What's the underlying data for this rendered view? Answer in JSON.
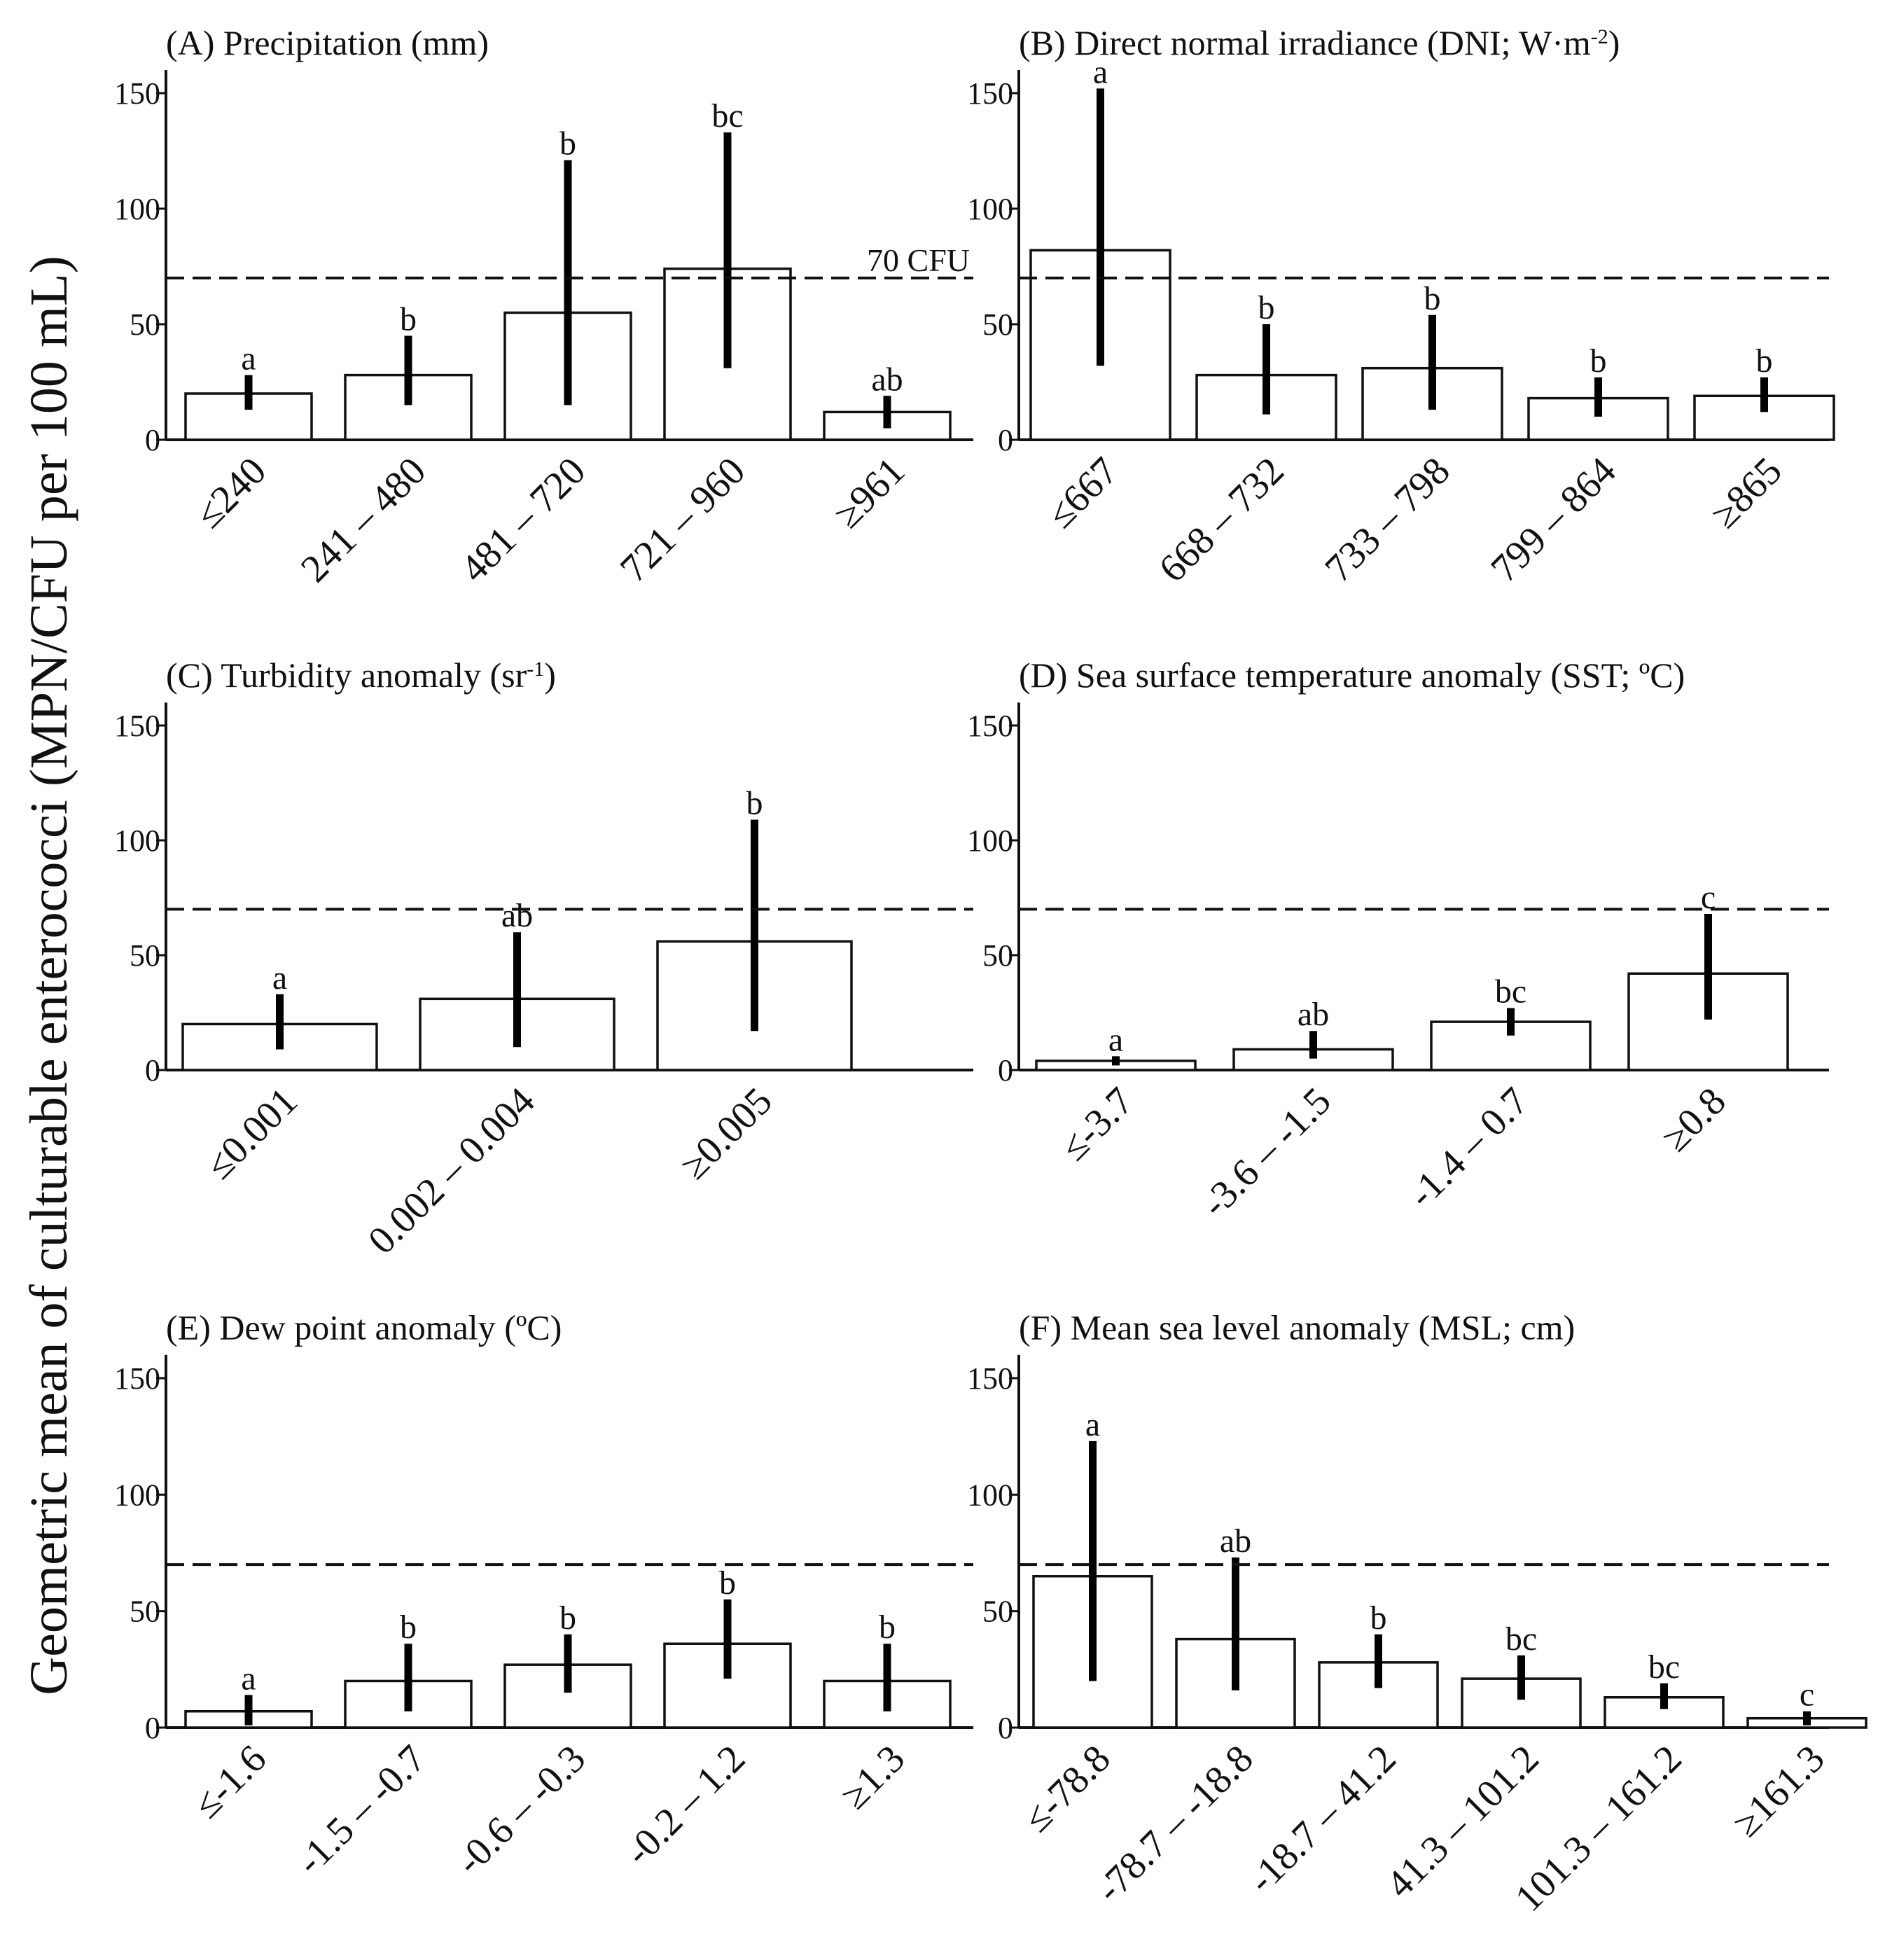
{
  "y_axis_title": "Geometric mean of culturable enterococci (MPN/CFU per 100 mL)",
  "reference_label": "70 CFU",
  "colors": {
    "ink": "#111111",
    "bar_fill": "#ffffff",
    "error_bar": "#000000"
  },
  "chart_data": [
    {
      "type": "bar",
      "id": "A",
      "title": "(A) Precipitation (mm)",
      "ylim": [
        0,
        160
      ],
      "yticks": [
        0,
        50,
        100,
        150
      ],
      "reference_line": 70,
      "categories": [
        "≤240",
        "241 – 480",
        "481 – 720",
        "721 – 960",
        "≥961"
      ],
      "values": [
        20,
        28,
        55,
        74,
        12
      ],
      "error_low": [
        13,
        15,
        15,
        31,
        5
      ],
      "error_high": [
        28,
        45,
        121,
        133,
        19
      ],
      "significance": [
        "a",
        "b",
        "b",
        "bc",
        "ab"
      ]
    },
    {
      "type": "bar",
      "id": "B",
      "title": "(B) Direct normal irradiance (DNI; W·m",
      "title_sup": "-2",
      "title_end": ")",
      "ylim": [
        0,
        160
      ],
      "yticks": [
        0,
        50,
        100,
        150
      ],
      "reference_line": 70,
      "categories": [
        "≤667",
        "668 – 732",
        "733 – 798",
        "799 – 864",
        "≥865"
      ],
      "values": [
        82,
        28,
        31,
        18,
        19
      ],
      "error_low": [
        32,
        11,
        13,
        10,
        12
      ],
      "error_high": [
        152,
        50,
        54,
        27,
        27
      ],
      "significance": [
        "a",
        "b",
        "b",
        "b",
        "b"
      ]
    },
    {
      "type": "bar",
      "id": "C",
      "title": "(C) Turbidity anomaly (sr",
      "title_sup": "-1",
      "title_end": ")",
      "ylim": [
        0,
        160
      ],
      "yticks": [
        0,
        50,
        100,
        150
      ],
      "reference_line": 70,
      "categories": [
        "≤0.001",
        "0.002 – 0.004",
        "≥0.005"
      ],
      "values": [
        20,
        31,
        56
      ],
      "error_low": [
        9,
        10,
        17
      ],
      "error_high": [
        33,
        60,
        109
      ],
      "significance": [
        "a",
        "ab",
        "b"
      ]
    },
    {
      "type": "bar",
      "id": "D",
      "title": "(D) Sea surface temperature anomaly (SST; ºC)",
      "ylim": [
        0,
        160
      ],
      "yticks": [
        0,
        50,
        100,
        150
      ],
      "reference_line": 70,
      "categories": [
        "≤-3.7",
        "-3.6 – -1.5",
        "-1.4 – 0.7",
        "≥0.8"
      ],
      "values": [
        4,
        9,
        21,
        42
      ],
      "error_low": [
        2,
        5,
        15,
        22
      ],
      "error_high": [
        6,
        17,
        27,
        68
      ],
      "significance": [
        "a",
        "ab",
        "bc",
        "c"
      ]
    },
    {
      "type": "bar",
      "id": "E",
      "title": "(E) Dew point anomaly (ºC)",
      "ylim": [
        0,
        160
      ],
      "yticks": [
        0,
        50,
        100,
        150
      ],
      "reference_line": 70,
      "categories": [
        "≤-1.6",
        "-1.5 – -0.7",
        "-0.6 – -0.3",
        "-0.2 – 1.2",
        "≥1.3"
      ],
      "values": [
        7,
        20,
        27,
        36,
        20
      ],
      "error_low": [
        1,
        7,
        15,
        21,
        7
      ],
      "error_high": [
        14,
        36,
        40,
        55,
        36
      ],
      "significance": [
        "a",
        "b",
        "b",
        "b",
        "b"
      ]
    },
    {
      "type": "bar",
      "id": "F",
      "title": "(F) Mean sea level anomaly (MSL; cm)",
      "ylim": [
        0,
        160
      ],
      "yticks": [
        0,
        50,
        100,
        150
      ],
      "reference_line": 70,
      "categories": [
        "≤-78.8",
        "-78.7 – -18.8",
        "-18.7 – 41.2",
        "41.3 – 101.2",
        "101.3 – 161.2",
        "≥161.3"
      ],
      "values": [
        65,
        38,
        28,
        21,
        13,
        4
      ],
      "error_low": [
        20,
        16,
        17,
        12,
        8,
        1
      ],
      "error_high": [
        123,
        73,
        40,
        31,
        19,
        7
      ],
      "significance": [
        "a",
        "ab",
        "b",
        "bc",
        "bc",
        "c"
      ]
    }
  ]
}
